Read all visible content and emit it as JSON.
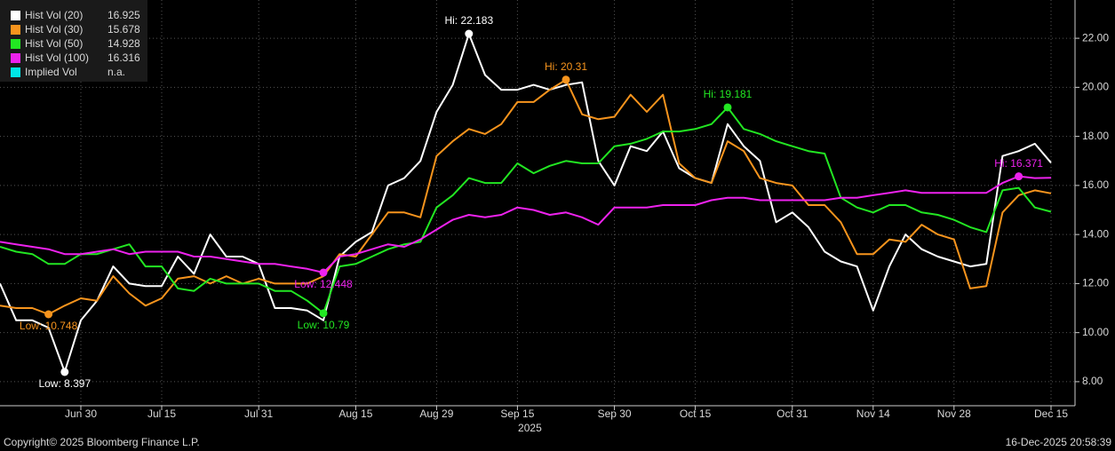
{
  "chart_data": {
    "type": "line",
    "categories": [
      null,
      null,
      null,
      null,
      null,
      "Jun 30",
      null,
      null,
      null,
      null,
      "Jul 15",
      null,
      null,
      null,
      null,
      null,
      "Jul 31",
      null,
      null,
      null,
      null,
      null,
      "Aug 15",
      null,
      null,
      null,
      null,
      "Aug 29",
      null,
      null,
      null,
      null,
      "Sep 15",
      null,
      null,
      null,
      null,
      null,
      "Sep 30",
      null,
      null,
      null,
      null,
      "Oct 15",
      null,
      null,
      null,
      null,
      null,
      "Oct 31",
      null,
      null,
      null,
      null,
      "Nov 14",
      null,
      null,
      null,
      null,
      "Nov 28",
      null,
      null,
      null,
      null,
      null,
      "Dec 15"
    ],
    "year_label": "2025",
    "ylim": [
      7.02,
      23.56
    ],
    "yticks": [
      {
        "value": 8,
        "label": "8.00"
      },
      {
        "value": 10,
        "label": "10.00"
      },
      {
        "value": 12,
        "label": "12.00"
      },
      {
        "value": 14,
        "label": "14.00"
      },
      {
        "value": 16,
        "label": "16.00"
      },
      {
        "value": 18,
        "label": "18.00"
      },
      {
        "value": 20,
        "label": "20.00"
      },
      {
        "value": 22,
        "label": "22.00"
      }
    ],
    "grid": true,
    "series": [
      {
        "name": "Hist Vol (20)",
        "color": "#ffffff",
        "values": [
          12.0,
          10.5,
          10.5,
          10.2,
          8.4,
          10.5,
          11.3,
          12.7,
          12.0,
          11.9,
          11.9,
          13.1,
          12.4,
          14.0,
          13.1,
          13.1,
          12.8,
          11.0,
          11.0,
          10.9,
          10.5,
          13.1,
          13.7,
          14.1,
          16.0,
          16.3,
          17.0,
          19.0,
          20.1,
          22.18,
          20.5,
          19.9,
          19.9,
          20.1,
          19.9,
          20.1,
          20.2,
          17.0,
          16.0,
          17.6,
          17.4,
          18.2,
          16.7,
          16.3,
          16.1,
          18.5,
          17.6,
          17.0,
          14.5,
          14.9,
          14.3,
          13.3,
          12.9,
          12.7,
          10.9,
          12.7,
          14.0,
          13.4,
          13.1,
          12.9,
          12.7,
          12.8,
          17.2,
          17.4,
          17.7,
          16.925
        ],
        "annotations": [
          {
            "label": "Hi: 22.183",
            "index": 29,
            "value": 22.183
          },
          {
            "label": "Low: 8.397",
            "index": 4,
            "value": 8.397
          }
        ]
      },
      {
        "name": "Hist Vol (30)",
        "color": "#f7941d",
        "values": [
          11.1,
          11.0,
          11.0,
          10.75,
          11.1,
          11.4,
          11.3,
          12.3,
          11.6,
          11.1,
          11.4,
          12.2,
          12.3,
          12.0,
          12.3,
          12.0,
          12.2,
          12.0,
          12.0,
          12.0,
          12.3,
          13.2,
          13.1,
          14.0,
          14.9,
          14.9,
          14.7,
          17.2,
          17.8,
          18.3,
          18.1,
          18.5,
          19.4,
          19.4,
          19.9,
          20.31,
          18.9,
          18.7,
          18.8,
          19.7,
          19.0,
          19.7,
          16.9,
          16.3,
          16.1,
          17.8,
          17.4,
          16.3,
          16.1,
          16.0,
          15.2,
          15.2,
          14.5,
          13.2,
          13.2,
          13.8,
          13.7,
          14.4,
          14.0,
          13.8,
          11.8,
          11.9,
          14.9,
          15.6,
          15.8,
          15.678
        ],
        "annotations": [
          {
            "label": "Hi: 20.31",
            "index": 35,
            "value": 20.31
          },
          {
            "label": "Low: 10.748",
            "index": 3,
            "value": 10.748
          }
        ]
      },
      {
        "name": "Hist Vol (50)",
        "color": "#22e622",
        "values": [
          13.5,
          13.3,
          13.2,
          12.8,
          12.8,
          13.2,
          13.2,
          13.4,
          13.6,
          12.7,
          12.7,
          11.8,
          11.7,
          12.2,
          12.0,
          12.0,
          12.0,
          11.7,
          11.7,
          11.3,
          10.79,
          12.7,
          12.8,
          13.1,
          13.4,
          13.6,
          13.7,
          15.1,
          15.6,
          16.3,
          16.1,
          16.1,
          16.9,
          16.5,
          16.8,
          17.0,
          16.9,
          16.9,
          17.6,
          17.7,
          17.9,
          18.2,
          18.2,
          18.3,
          18.5,
          19.181,
          18.3,
          18.1,
          17.8,
          17.6,
          17.4,
          17.3,
          15.5,
          15.1,
          14.9,
          15.2,
          15.2,
          14.9,
          14.8,
          14.6,
          14.3,
          14.1,
          15.8,
          15.9,
          15.1,
          14.928
        ],
        "annotations": [
          {
            "label": "Hi: 19.181",
            "index": 45,
            "value": 19.181
          },
          {
            "label": "Low: 10.79",
            "index": 20,
            "value": 10.79
          }
        ]
      },
      {
        "name": "Hist Vol (100)",
        "color": "#ee22ee",
        "values": [
          13.7,
          13.6,
          13.5,
          13.4,
          13.2,
          13.2,
          13.3,
          13.4,
          13.2,
          13.3,
          13.3,
          13.3,
          13.1,
          13.1,
          13.0,
          12.9,
          12.8,
          12.8,
          12.7,
          12.6,
          12.448,
          13.1,
          13.2,
          13.4,
          13.6,
          13.5,
          13.8,
          14.2,
          14.6,
          14.8,
          14.7,
          14.8,
          15.1,
          15.0,
          14.8,
          14.9,
          14.7,
          14.4,
          15.1,
          15.1,
          15.1,
          15.2,
          15.2,
          15.2,
          15.4,
          15.5,
          15.5,
          15.4,
          15.4,
          15.4,
          15.4,
          15.4,
          15.5,
          15.5,
          15.6,
          15.7,
          15.8,
          15.7,
          15.7,
          15.7,
          15.7,
          15.7,
          16.1,
          16.371,
          16.3,
          16.316
        ],
        "annotations": [
          {
            "label": "Hi: 16.371",
            "index": 63,
            "value": 16.371
          },
          {
            "label": "Low: 12.448",
            "index": 20,
            "value": 12.448
          }
        ]
      }
    ],
    "legend_extra": {
      "name": "Implied Vol",
      "color": "#00e5e5",
      "value_label": "n.a."
    },
    "legend": "upper left",
    "copyright": "Copyright© 2025 Bloomberg Finance L.P.",
    "timestamp": "16-Dec-2025 20:58:39"
  }
}
